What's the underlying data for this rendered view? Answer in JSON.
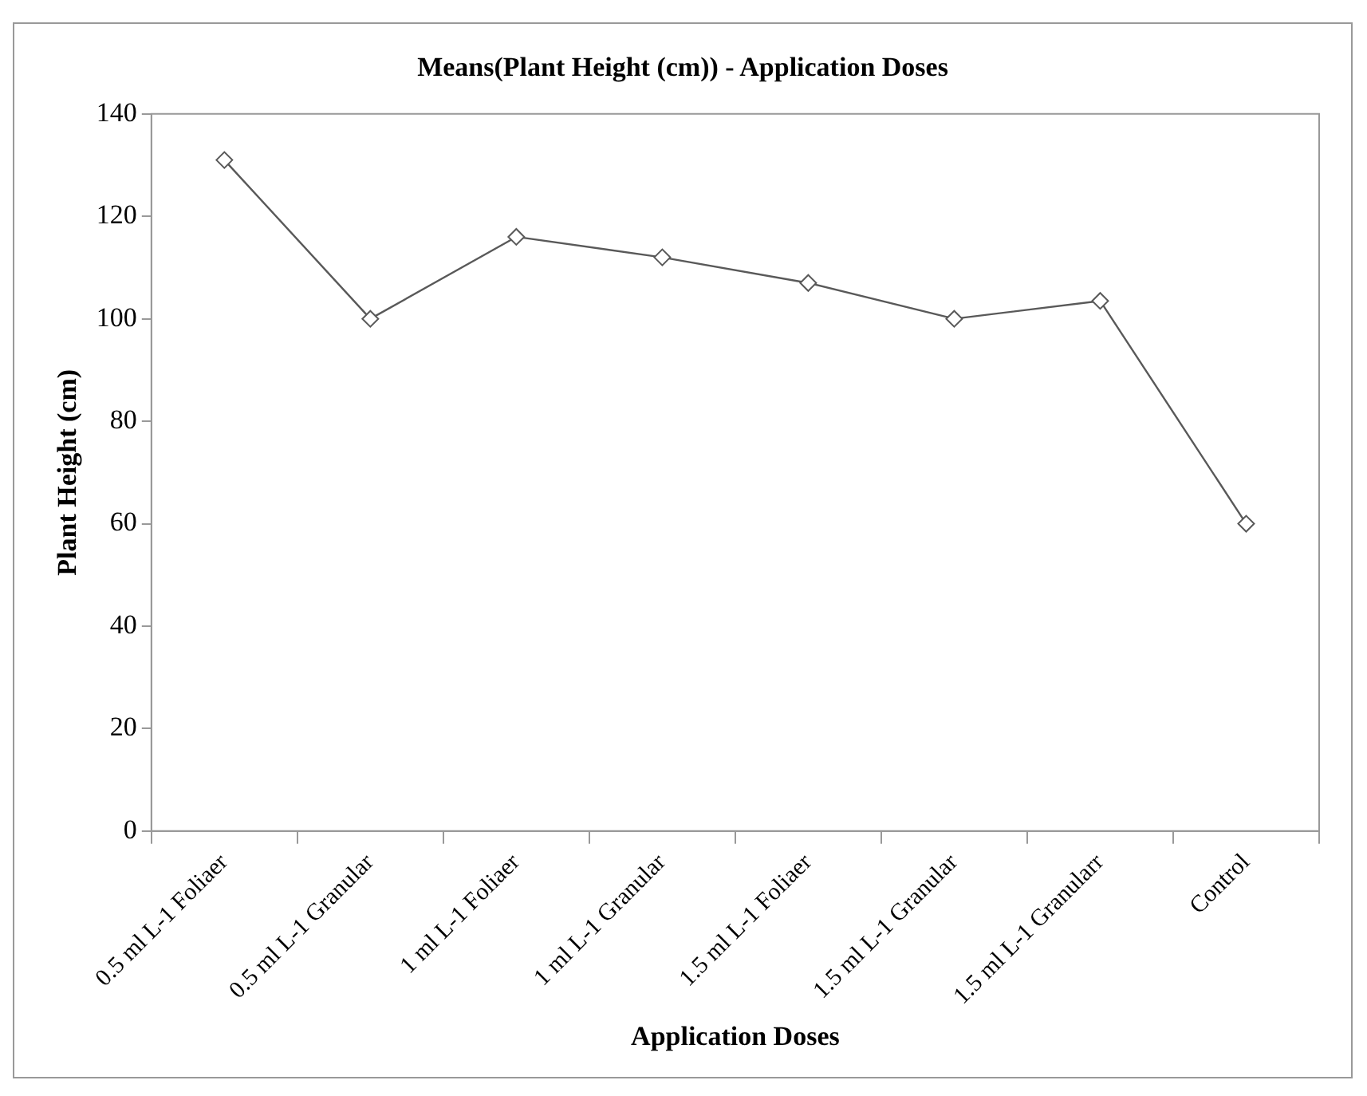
{
  "chart_data": {
    "type": "line",
    "title": "Means(Plant Height (cm)) - Application Doses",
    "xlabel": "Application Doses",
    "ylabel": "Plant Height (cm)",
    "categories": [
      "0.5 ml L-1 Foliaer",
      "0.5 ml L-1 Granular",
      "1 ml L-1 Foliaer",
      "1 ml L-1 Granular",
      "1.5 ml L-1 Foliaer",
      "1.5 ml L-1 Granular",
      "1.5 ml L-1 Granularr",
      "Control"
    ],
    "series": [
      {
        "color": "#595959",
        "values": [
          131,
          100,
          116,
          112,
          107,
          100,
          103.5,
          60
        ]
      }
    ],
    "ylim": [
      0,
      140
    ],
    "yticks": [
      0,
      20,
      40,
      60,
      80,
      100,
      120,
      140
    ],
    "grid": false,
    "legend": false,
    "marker": "diamond",
    "line_style": "solid"
  }
}
